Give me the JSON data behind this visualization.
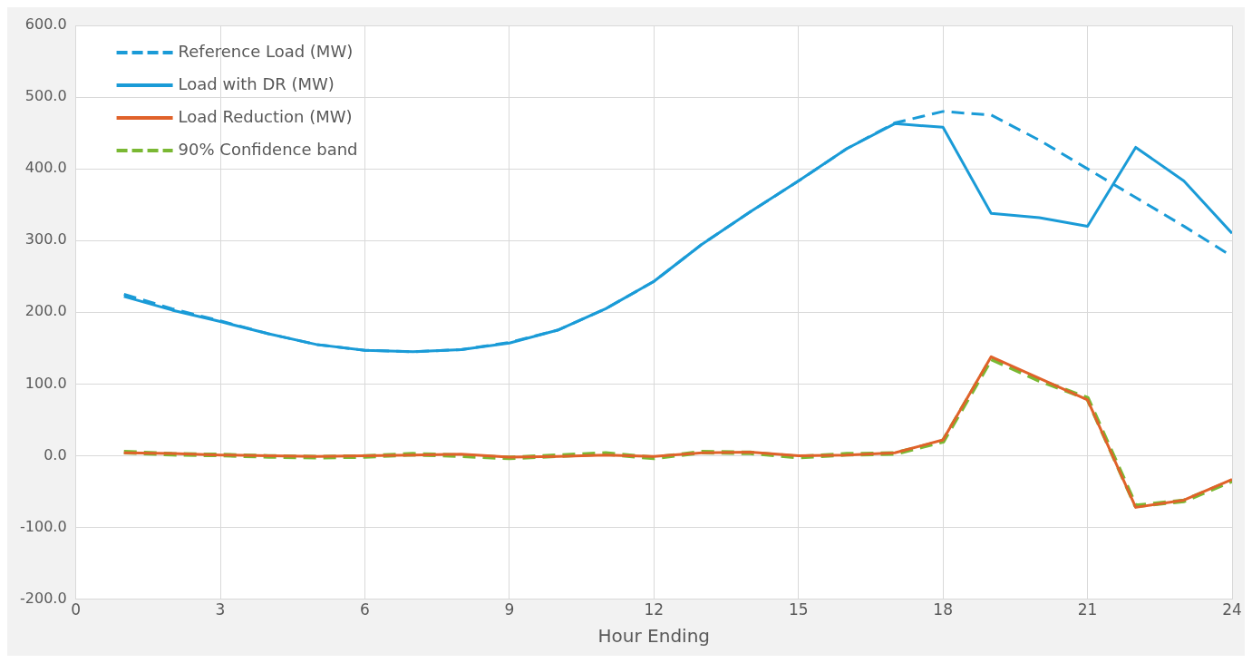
{
  "chart_data": {
    "type": "line",
    "xlabel": "Hour Ending",
    "x": [
      1,
      2,
      3,
      4,
      5,
      6,
      7,
      8,
      9,
      10,
      11,
      12,
      13,
      14,
      15,
      16,
      17,
      18,
      19,
      20,
      21,
      22,
      23,
      24
    ],
    "series": [
      {
        "name": "Reference Load (MW)",
        "color": "#1a9bd7",
        "line_style": "dashed",
        "values": [
          225,
          205,
          188,
          170,
          155,
          147,
          145,
          148,
          158,
          175,
          205,
          243,
          295,
          340,
          383,
          428,
          464,
          480,
          475,
          440,
          400,
          360,
          320,
          278
        ]
      },
      {
        "name": "Load with DR (MW)",
        "color": "#1a9bd7",
        "line_style": "solid",
        "values": [
          222,
          203,
          187,
          170,
          155,
          147,
          145,
          148,
          157,
          175,
          205,
          243,
          295,
          340,
          383,
          428,
          463,
          458,
          338,
          332,
          320,
          430,
          383,
          310
        ]
      },
      {
        "name": "Load Reduction (MW)",
        "color": "#e0622a",
        "line_style": "solid",
        "values": [
          4,
          3,
          1,
          0,
          -1,
          0,
          1,
          2,
          -2,
          -1,
          1,
          -1,
          4,
          5,
          0,
          1,
          4,
          22,
          138,
          108,
          78,
          -72,
          -62,
          -33
        ]
      },
      {
        "name": "90% Confidence band",
        "color": "#7ab833",
        "line_style": "dashed",
        "values": [
          5,
          2,
          1,
          -1,
          -2,
          -1,
          2,
          0,
          -3,
          0,
          3,
          -3,
          5,
          4,
          -2,
          2,
          3,
          20,
          135,
          105,
          80,
          -70,
          -63,
          -35
        ]
      }
    ],
    "xlim": [
      0,
      24
    ],
    "xticks": [
      0,
      3,
      6,
      9,
      12,
      15,
      18,
      21,
      24
    ],
    "ylim": [
      -200,
      600
    ],
    "yticks": [
      {
        "value": -200,
        "label": "-200.0"
      },
      {
        "value": -100,
        "label": "-100.0"
      },
      {
        "value": 0,
        "label": "0.0"
      },
      {
        "value": 100,
        "label": "100.0"
      },
      {
        "value": 200,
        "label": "200.0"
      },
      {
        "value": 300,
        "label": "300.0"
      },
      {
        "value": 400,
        "label": "400.0"
      },
      {
        "value": 500,
        "label": "500.0"
      },
      {
        "value": 600,
        "label": "600.0"
      }
    ],
    "grid": true,
    "legend": "top left",
    "marker": "none"
  }
}
